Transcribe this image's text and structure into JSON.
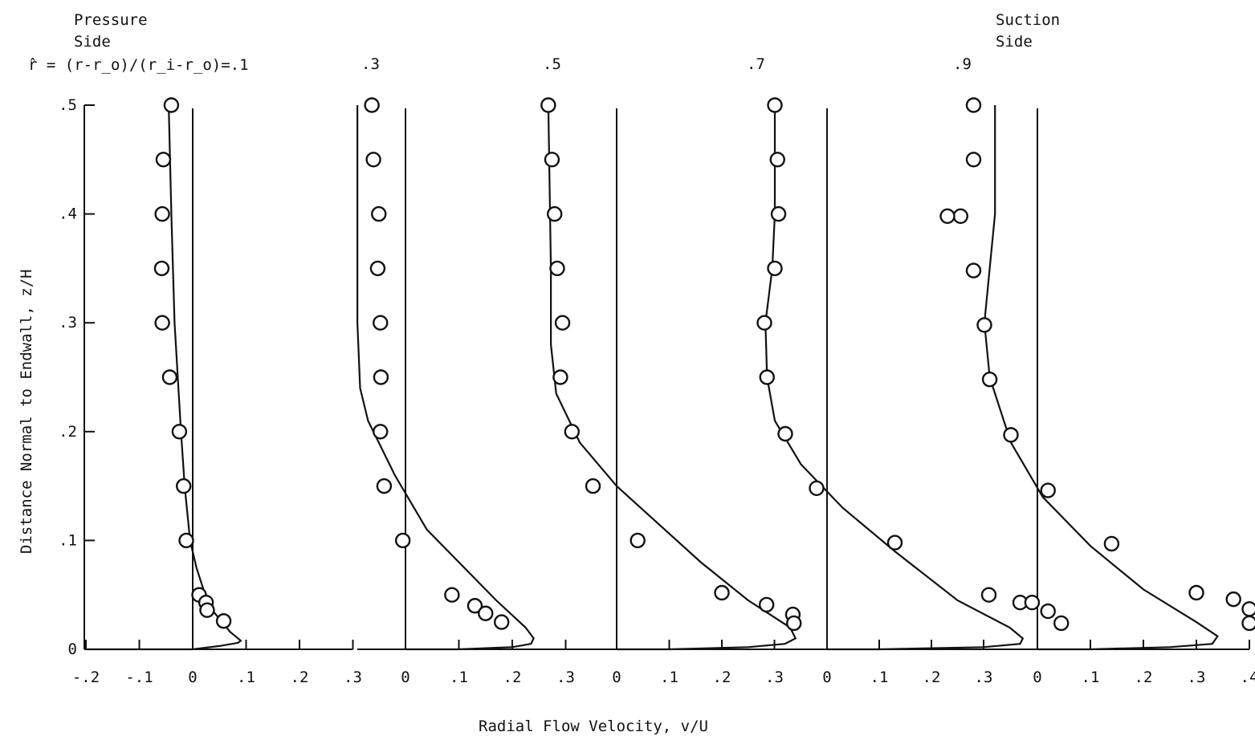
{
  "chart_data": {
    "type": "line+scatter",
    "header": {
      "left_label": "Pressure\nSide",
      "right_label": "Suction\nSide",
      "rhat_def": "r̂ = (r-r_o)/(r_i-r_o)=.1"
    },
    "xlabel": "Radial Flow Velocity, v/U",
    "ylabel": "Distance Normal to Endwall, z/H",
    "ylim": [
      0,
      0.5
    ],
    "y_ticks": [
      {
        "v": 0,
        "l": "0"
      },
      {
        "v": 0.1,
        "l": ".1"
      },
      {
        "v": 0.2,
        "l": ".2"
      },
      {
        "v": 0.3,
        "l": ".3"
      },
      {
        "v": 0.4,
        "l": ".4"
      },
      {
        "v": 0.5,
        "l": ".5"
      }
    ],
    "panels": [
      {
        "rhat": ".1",
        "xlim": [
          -0.2,
          0.3
        ],
        "x_ticks": [
          {
            "v": -0.2,
            "l": "-.2"
          },
          {
            "v": -0.1,
            "l": "-.1"
          },
          {
            "v": 0,
            "l": "0"
          },
          {
            "v": 0.1,
            "l": ".1"
          },
          {
            "v": 0.2,
            "l": ".2"
          },
          {
            "v": 0.3,
            "l": ".3"
          }
        ],
        "curve": [
          [
            -0.2,
            0.0
          ],
          [
            -0.1,
            0.0
          ],
          [
            0.0,
            0.0
          ],
          [
            0.05,
            0.003
          ],
          [
            0.085,
            0.006
          ],
          [
            0.09,
            0.008
          ],
          [
            0.07,
            0.016
          ],
          [
            0.03,
            0.04
          ],
          [
            0.007,
            0.075
          ],
          [
            -0.005,
            0.1
          ],
          [
            -0.015,
            0.15
          ],
          [
            -0.022,
            0.2
          ],
          [
            -0.028,
            0.25
          ],
          [
            -0.034,
            0.3
          ],
          [
            -0.04,
            0.4
          ],
          [
            -0.045,
            0.5
          ]
        ],
        "points": [
          [
            -0.04,
            0.5
          ],
          [
            -0.055,
            0.45
          ],
          [
            -0.057,
            0.4
          ],
          [
            -0.058,
            0.35
          ],
          [
            -0.057,
            0.3
          ],
          [
            -0.043,
            0.25
          ],
          [
            -0.025,
            0.2
          ],
          [
            -0.017,
            0.15
          ],
          [
            -0.012,
            0.1
          ],
          [
            0.012,
            0.05
          ],
          [
            0.025,
            0.043
          ],
          [
            0.027,
            0.036
          ],
          [
            0.058,
            0.026
          ]
        ]
      },
      {
        "rhat": ".3",
        "xlim": [
          -0.1,
          0.35
        ],
        "x_ticks": [
          {
            "v": 0,
            "l": "0"
          },
          {
            "v": 0.1,
            "l": ".1"
          },
          {
            "v": 0.2,
            "l": ".2"
          },
          {
            "v": 0.3,
            "l": ".3"
          }
        ],
        "curve": [
          [
            0.0,
            0.0
          ],
          [
            0.1,
            0.0
          ],
          [
            0.2,
            0.002
          ],
          [
            0.235,
            0.005
          ],
          [
            0.24,
            0.01
          ],
          [
            0.225,
            0.02
          ],
          [
            0.17,
            0.045
          ],
          [
            0.1,
            0.08
          ],
          [
            0.04,
            0.11
          ],
          [
            -0.02,
            0.16
          ],
          [
            -0.07,
            0.21
          ],
          [
            -0.085,
            0.24
          ],
          [
            -0.09,
            0.3
          ],
          [
            -0.09,
            0.4
          ],
          [
            -0.09,
            0.5
          ]
        ],
        "points": [
          [
            -0.063,
            0.5
          ],
          [
            -0.06,
            0.45
          ],
          [
            -0.05,
            0.4
          ],
          [
            -0.052,
            0.35
          ],
          [
            -0.047,
            0.3
          ],
          [
            -0.046,
            0.25
          ],
          [
            -0.047,
            0.2
          ],
          [
            -0.04,
            0.15
          ],
          [
            -0.005,
            0.1
          ],
          [
            0.087,
            0.05
          ],
          [
            0.13,
            0.04
          ],
          [
            0.15,
            0.033
          ],
          [
            0.18,
            0.025
          ]
        ]
      },
      {
        "rhat": ".5",
        "xlim": [
          -0.15,
          0.35
        ],
        "x_ticks": [
          {
            "v": 0,
            "l": "0"
          },
          {
            "v": 0.1,
            "l": ".1"
          },
          {
            "v": 0.2,
            "l": ".2"
          },
          {
            "v": 0.3,
            "l": ".3"
          }
        ],
        "curve": [
          [
            0.0,
            0.0
          ],
          [
            0.1,
            0.0
          ],
          [
            0.25,
            0.002
          ],
          [
            0.32,
            0.005
          ],
          [
            0.34,
            0.01
          ],
          [
            0.33,
            0.02
          ],
          [
            0.25,
            0.045
          ],
          [
            0.16,
            0.08
          ],
          [
            0.08,
            0.115
          ],
          [
            0.0,
            0.15
          ],
          [
            -0.07,
            0.19
          ],
          [
            -0.115,
            0.235
          ],
          [
            -0.125,
            0.28
          ],
          [
            -0.125,
            0.35
          ],
          [
            -0.13,
            0.5
          ]
        ],
        "points": [
          [
            -0.13,
            0.5
          ],
          [
            -0.123,
            0.45
          ],
          [
            -0.118,
            0.4
          ],
          [
            -0.113,
            0.35
          ],
          [
            -0.103,
            0.3
          ],
          [
            -0.107,
            0.25
          ],
          [
            -0.085,
            0.2
          ],
          [
            -0.045,
            0.15
          ],
          [
            0.04,
            0.1
          ],
          [
            0.2,
            0.052
          ],
          [
            0.285,
            0.041
          ],
          [
            0.335,
            0.032
          ],
          [
            0.337,
            0.024
          ]
        ]
      },
      {
        "rhat": ".7",
        "xlim": [
          -0.15,
          0.35
        ],
        "x_ticks": [
          {
            "v": 0,
            "l": "0"
          },
          {
            "v": 0.1,
            "l": ".1"
          },
          {
            "v": 0.2,
            "l": ".2"
          },
          {
            "v": 0.3,
            "l": ".3"
          }
        ],
        "curve": [
          [
            0.0,
            0.0
          ],
          [
            0.1,
            0.0
          ],
          [
            0.3,
            0.002
          ],
          [
            0.37,
            0.005
          ],
          [
            0.375,
            0.01
          ],
          [
            0.35,
            0.02
          ],
          [
            0.25,
            0.045
          ],
          [
            0.13,
            0.09
          ],
          [
            0.03,
            0.13
          ],
          [
            -0.05,
            0.17
          ],
          [
            -0.1,
            0.21
          ],
          [
            -0.115,
            0.25
          ],
          [
            -0.118,
            0.3
          ],
          [
            -0.105,
            0.35
          ],
          [
            -0.1,
            0.4
          ],
          [
            -0.1,
            0.5
          ]
        ],
        "points": [
          [
            -0.1,
            0.5
          ],
          [
            -0.095,
            0.45
          ],
          [
            -0.093,
            0.4
          ],
          [
            -0.1,
            0.35
          ],
          [
            -0.12,
            0.3
          ],
          [
            -0.115,
            0.25
          ],
          [
            -0.08,
            0.198
          ],
          [
            -0.02,
            0.148
          ],
          [
            0.13,
            0.098
          ],
          [
            0.31,
            0.05
          ],
          [
            0.37,
            0.043
          ]
        ]
      },
      {
        "rhat": ".9",
        "xlim": [
          -0.15,
          0.4
        ],
        "x_ticks": [
          {
            "v": 0,
            "l": "0"
          },
          {
            "v": 0.1,
            "l": ".1"
          },
          {
            "v": 0.2,
            "l": ".2"
          },
          {
            "v": 0.3,
            "l": ".3"
          },
          {
            "v": 0.4,
            "l": ".4"
          }
        ],
        "curve": [
          [
            0.0,
            0.0
          ],
          [
            0.1,
            0.0
          ],
          [
            0.25,
            0.002
          ],
          [
            0.33,
            0.005
          ],
          [
            0.34,
            0.012
          ],
          [
            0.3,
            0.025
          ],
          [
            0.2,
            0.055
          ],
          [
            0.1,
            0.095
          ],
          [
            0.01,
            0.14
          ],
          [
            -0.05,
            0.19
          ],
          [
            -0.09,
            0.25
          ],
          [
            -0.1,
            0.3
          ],
          [
            -0.09,
            0.35
          ],
          [
            -0.08,
            0.4
          ],
          [
            -0.08,
            0.5
          ]
        ],
        "points": [
          [
            -0.145,
            0.398
          ],
          [
            -0.1,
            0.298
          ],
          [
            -0.09,
            0.248
          ],
          [
            -0.05,
            0.197
          ],
          [
            0.02,
            0.146
          ],
          [
            0.14,
            0.097
          ],
          [
            0.3,
            0.052
          ],
          [
            0.37,
            0.046
          ],
          [
            0.4,
            0.037
          ],
          [
            0.4,
            0.024
          ]
        ]
      }
    ],
    "carry_points": [
      {
        "panel": 3,
        "points": [
          [
            -0.05,
            0.5
          ],
          [
            -0.05,
            0.45
          ],
          [
            -0.1,
            0.398
          ],
          [
            -0.05,
            0.348
          ]
        ]
      },
      {
        "panel": 4,
        "points": [
          [
            -0.01,
            0.043
          ],
          [
            0.02,
            0.035
          ],
          [
            0.045,
            0.024
          ]
        ]
      }
    ]
  }
}
